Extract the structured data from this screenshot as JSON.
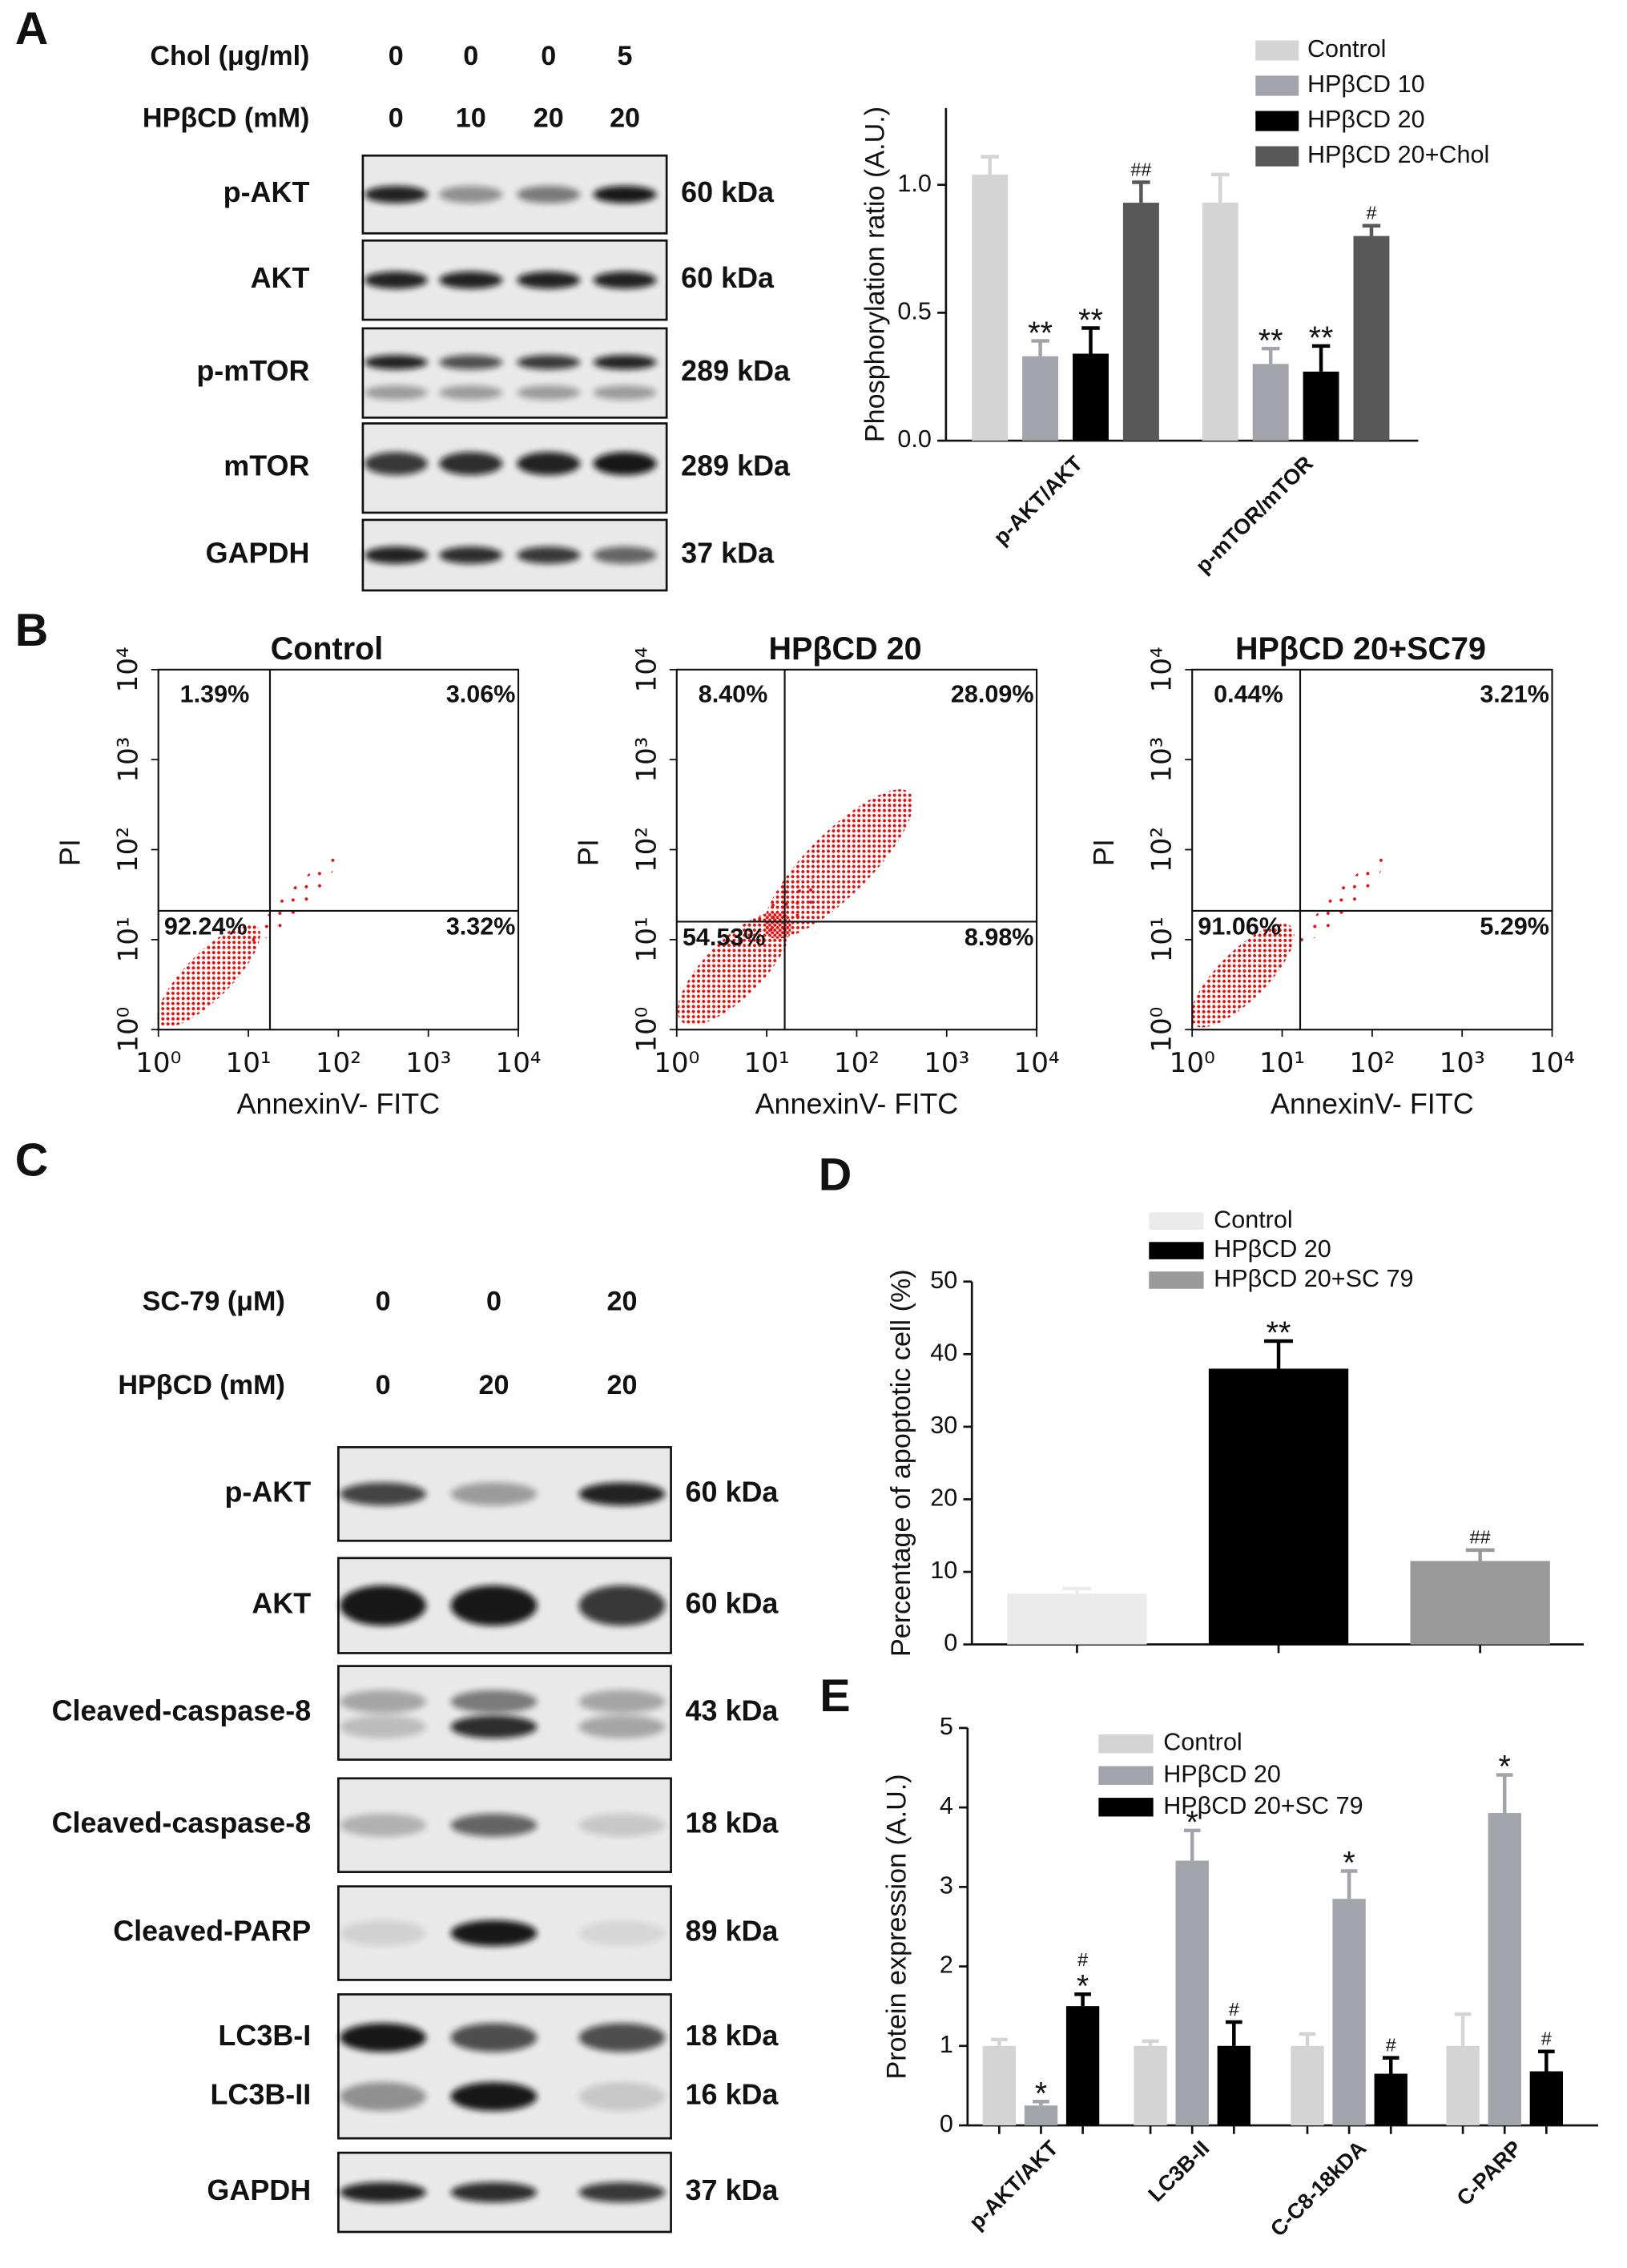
{
  "panels": [
    "A",
    "B",
    "C",
    "D",
    "E"
  ],
  "blot_a": {
    "treatments": [
      {
        "label": "Chol (μg/ml)",
        "doses": [
          "0",
          "0",
          "0",
          "5"
        ]
      },
      {
        "label": "HPβCD (mM)",
        "doses": [
          "0",
          "10",
          "20",
          "20"
        ]
      }
    ],
    "bands": [
      {
        "labels": [
          "p-AKT"
        ],
        "sizes": [
          "60 kDa"
        ]
      },
      {
        "labels": [
          "AKT"
        ],
        "sizes": [
          "60 kDa"
        ]
      },
      {
        "labels": [
          "p-mTOR"
        ],
        "sizes": [
          "289 kDa"
        ]
      },
      {
        "labels": [
          "mTOR"
        ],
        "sizes": [
          "289 kDa"
        ]
      },
      {
        "labels": [
          "GAPDH"
        ],
        "sizes": [
          "37 kDa"
        ]
      }
    ]
  },
  "flow": {
    "x_label": "AnnexinV- FITC",
    "y_label": "PI",
    "lim": [
      1,
      10000
    ],
    "ticks": [
      {
        "value": 1,
        "label": "10⁰"
      },
      {
        "value": 10,
        "label": "10¹"
      },
      {
        "value": 100,
        "label": "10²"
      },
      {
        "value": 1000,
        "label": "10³"
      },
      {
        "value": 10000,
        "label": "10⁴"
      }
    ],
    "plots": [
      {
        "title": "Control",
        "quadrants": [
          "1.39%",
          "3.06%",
          "92.24%",
          "3.32%"
        ]
      },
      {
        "title": "HPβCD 20",
        "quadrants": [
          "8.40%",
          "28.09%",
          "54.53%",
          "8.98%"
        ]
      },
      {
        "title": "HPβCD 20+SC79",
        "quadrants": [
          "0.44%",
          "3.21%",
          "91.06%",
          "5.29%"
        ]
      }
    ]
  },
  "blot_c": {
    "treatments": [
      {
        "label": "SC-79 (μM)",
        "doses": [
          "0",
          "0",
          "20"
        ]
      },
      {
        "label": "HPβCD (mM)",
        "doses": [
          "0",
          "20",
          "20"
        ]
      }
    ],
    "bands": [
      {
        "labels": [
          "p-AKT"
        ],
        "sizes": [
          "60 kDa"
        ]
      },
      {
        "labels": [
          "AKT"
        ],
        "sizes": [
          "60 kDa"
        ]
      },
      {
        "labels": [
          "Cleaved-caspase-8"
        ],
        "sizes": [
          "43 kDa"
        ]
      },
      {
        "labels": [
          "Cleaved-caspase-8"
        ],
        "sizes": [
          "18 kDa"
        ]
      },
      {
        "labels": [
          "Cleaved-PARP"
        ],
        "sizes": [
          "89 kDa"
        ]
      },
      {
        "labels": [
          "LC3B-I",
          "LC3B-II"
        ],
        "sizes": [
          "18 kDa",
          "16 kDa"
        ]
      },
      {
        "labels": [
          "GAPDH"
        ],
        "sizes": [
          "37 kDa"
        ]
      }
    ]
  },
  "chart_data": [
    {
      "type": "bar",
      "ylabel": "Phosphorylation ratio (A.U.)",
      "categories": [
        "p-AKT/AKT",
        "p-mTOR/mTOR"
      ],
      "ylim": [
        0,
        1.3
      ],
      "yticks": [
        {
          "value": 0,
          "label": "0.0"
        },
        {
          "value": 0.5,
          "label": "0.5"
        },
        {
          "value": 1,
          "label": "1.0"
        }
      ],
      "legend": "upper right",
      "series": [
        {
          "name": "Control",
          "color": "#d4d4d4",
          "values": [
            1.04,
            0.93
          ],
          "errors": [
            0.07,
            0.11
          ],
          "annotations": null
        },
        {
          "name": "HPβCD 10",
          "color": "#a3a3ab",
          "values": [
            0.33,
            0.3
          ],
          "errors": [
            0.06,
            0.06
          ],
          "annotations": [
            [
              "**"
            ],
            [
              "**"
            ]
          ]
        },
        {
          "name": "HPβCD 20",
          "color": "#000000",
          "values": [
            0.34,
            0.27
          ],
          "errors": [
            0.1,
            0.1
          ],
          "annotations": [
            [
              "**"
            ],
            [
              "**"
            ]
          ]
        },
        {
          "name": "HPβCD 20+Chol",
          "color": "#585858",
          "values": [
            0.93,
            0.8
          ],
          "errors": [
            0.08,
            0.04
          ],
          "annotations": [
            [
              "##"
            ],
            [
              "#"
            ]
          ]
        }
      ]
    },
    {
      "type": "bar",
      "ylabel": "Percentage of apoptotic cell (%)",
      "categories": [
        null
      ],
      "ylim": [
        0,
        50
      ],
      "yticks": [
        0,
        10,
        20,
        30,
        40,
        50
      ],
      "legend": "upper center",
      "series": [
        {
          "name": "Control",
          "color": "#ebebeb",
          "values": [
            7
          ],
          "errors": [
            0.7
          ],
          "annotations": null
        },
        {
          "name": "HPβCD 20",
          "color": "#000000",
          "values": [
            38
          ],
          "errors": [
            3.8
          ],
          "annotations": [
            [
              "**"
            ]
          ]
        },
        {
          "name": "HPβCD 20+SC 79",
          "color": "#9a9a9a",
          "values": [
            11.5
          ],
          "errors": [
            1.5
          ],
          "annotations": [
            [
              "##"
            ]
          ]
        }
      ]
    },
    {
      "type": "bar",
      "ylabel": "Protein expression (A.U.)",
      "categories": [
        "p-AKT/AKT",
        "LC3B-II",
        "C-C8-18kDA",
        "C-PARP"
      ],
      "ylim": [
        0,
        5
      ],
      "yticks": [
        0,
        1,
        2,
        3,
        4,
        5
      ],
      "legend": "upper center",
      "series": [
        {
          "name": "Control",
          "color": "#d4d4d4",
          "values": [
            1,
            1,
            1,
            1
          ],
          "errors": [
            0.08,
            0.06,
            0.15,
            0.4
          ],
          "annotations": null
        },
        {
          "name": "HPβCD 20",
          "color": "#a3a3ab",
          "values": [
            0.25,
            3.33,
            2.85,
            3.93
          ],
          "errors": [
            0.05,
            0.38,
            0.35,
            0.48
          ],
          "annotations": [
            [
              "*"
            ],
            [
              "*"
            ],
            [
              "*"
            ],
            [
              "*"
            ]
          ]
        },
        {
          "name": "HPβCD 20+SC 79",
          "color": "#000000",
          "values": [
            1.5,
            1,
            0.65,
            0.68
          ],
          "errors": [
            0.15,
            0.3,
            0.2,
            0.25
          ],
          "annotations": [
            [
              "*",
              "#"
            ],
            [
              "#"
            ],
            [
              "#"
            ],
            [
              "#"
            ]
          ]
        }
      ]
    }
  ]
}
